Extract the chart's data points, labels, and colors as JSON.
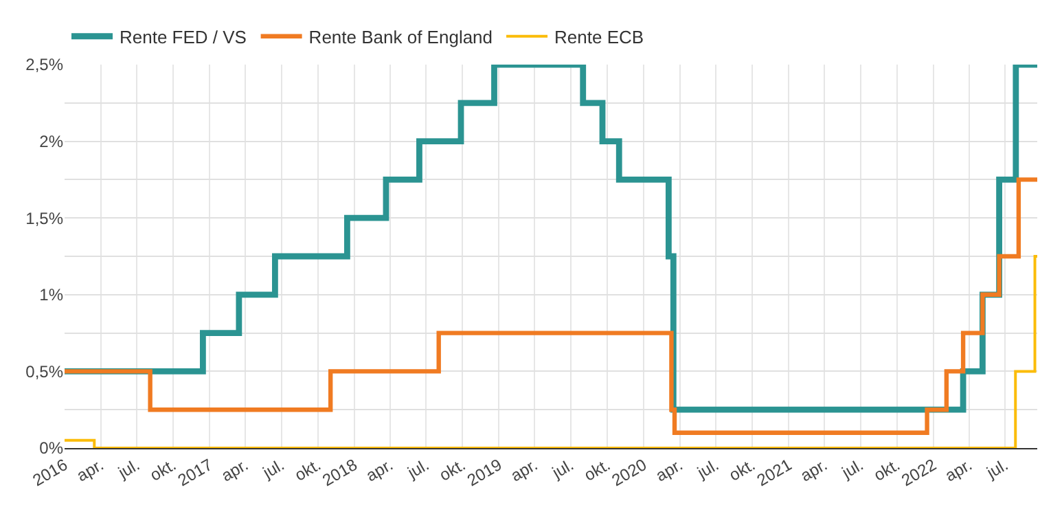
{
  "chart_data": {
    "type": "step",
    "legend": "top left",
    "grid": true,
    "marker": "none",
    "line_style": "solid",
    "xlim": [
      "2016-01-01",
      "2022-09-20"
    ],
    "ylim": [
      0,
      2.5
    ],
    "yticks": [
      {
        "value": 0,
        "label": "0%"
      },
      {
        "value": 0.25,
        "label": null
      },
      {
        "value": 0.5,
        "label": "0,5%"
      },
      {
        "value": 0.75,
        "label": null
      },
      {
        "value": 1,
        "label": "1%"
      },
      {
        "value": 1.25,
        "label": null
      },
      {
        "value": 1.5,
        "label": "1,5%"
      },
      {
        "value": 1.75,
        "label": null
      },
      {
        "value": 2,
        "label": "2%"
      },
      {
        "value": 2.25,
        "label": null
      },
      {
        "value": 2.5,
        "label": "2,5%"
      }
    ],
    "xticks": [
      {
        "value": "2016-01-01",
        "label": "2016"
      },
      {
        "value": "2016-04-01",
        "label": "apr."
      },
      {
        "value": "2016-07-01",
        "label": "jul."
      },
      {
        "value": "2016-10-01",
        "label": "okt."
      },
      {
        "value": "2017-01-01",
        "label": "2017"
      },
      {
        "value": "2017-04-01",
        "label": "apr."
      },
      {
        "value": "2017-07-01",
        "label": "jul."
      },
      {
        "value": "2017-10-01",
        "label": "okt."
      },
      {
        "value": "2018-01-01",
        "label": "2018"
      },
      {
        "value": "2018-04-01",
        "label": "apr."
      },
      {
        "value": "2018-07-01",
        "label": "jul."
      },
      {
        "value": "2018-10-01",
        "label": "okt."
      },
      {
        "value": "2019-01-01",
        "label": "2019"
      },
      {
        "value": "2019-04-01",
        "label": "apr."
      },
      {
        "value": "2019-07-01",
        "label": "jul."
      },
      {
        "value": "2019-10-01",
        "label": "okt."
      },
      {
        "value": "2020-01-01",
        "label": "2020"
      },
      {
        "value": "2020-04-01",
        "label": "apr."
      },
      {
        "value": "2020-07-01",
        "label": "jul."
      },
      {
        "value": "2020-10-01",
        "label": "okt."
      },
      {
        "value": "2021-01-01",
        "label": "2021"
      },
      {
        "value": "2021-04-01",
        "label": "apr."
      },
      {
        "value": "2021-07-01",
        "label": "jul."
      },
      {
        "value": "2021-10-01",
        "label": "okt."
      },
      {
        "value": "2022-01-01",
        "label": "2022"
      },
      {
        "value": "2022-04-01",
        "label": "apr."
      },
      {
        "value": "2022-07-01",
        "label": "jul."
      }
    ],
    "series": [
      {
        "name": "Rente FED / VS",
        "color": "#2b9492",
        "x": [
          "2016-01-01",
          "2016-12-15",
          "2017-03-16",
          "2017-06-15",
          "2017-12-14",
          "2018-03-22",
          "2018-06-14",
          "2018-09-27",
          "2018-12-20",
          "2019-08-01",
          "2019-09-19",
          "2019-10-31",
          "2020-03-04",
          "2020-03-16",
          "2022-03-17",
          "2022-05-05",
          "2022-06-16",
          "2022-07-28",
          "2022-09-20"
        ],
        "values": [
          0.5,
          0.75,
          1,
          1.25,
          1.5,
          1.75,
          2,
          2.25,
          2.5,
          2.25,
          2,
          1.75,
          1.25,
          0.25,
          0.5,
          1,
          1.75,
          2.5,
          2.5
        ]
      },
      {
        "name": "Rente Bank of England",
        "color": "#f07b22",
        "x": [
          "2016-01-01",
          "2016-08-04",
          "2017-11-02",
          "2018-08-02",
          "2020-03-11",
          "2020-03-19",
          "2021-12-16",
          "2022-02-03",
          "2022-03-17",
          "2022-05-05",
          "2022-06-16",
          "2022-08-04",
          "2022-09-20"
        ],
        "values": [
          0.5,
          0.25,
          0.5,
          0.75,
          0.25,
          0.1,
          0.25,
          0.5,
          0.75,
          1,
          1.25,
          1.75,
          1.75
        ]
      },
      {
        "name": "Rente ECB",
        "color": "#fbbc09",
        "x": [
          "2016-01-01",
          "2016-03-16",
          "2022-07-27",
          "2022-09-14",
          "2022-09-20"
        ],
        "values": [
          0.05,
          0,
          0.5,
          1.25,
          1.25
        ]
      }
    ]
  }
}
